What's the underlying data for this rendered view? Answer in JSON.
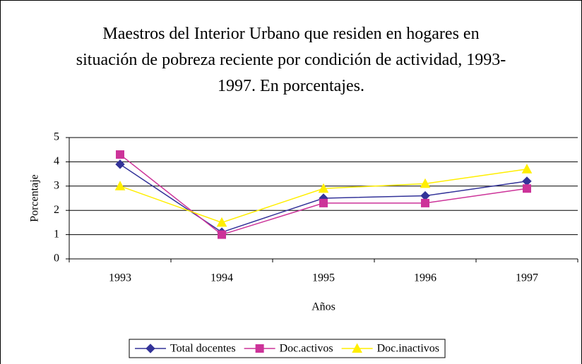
{
  "chart_data": {
    "type": "line",
    "title": "Maestros del Interior Urbano que residen en hogares en situación de pobreza reciente por condición de actividad, 1993-1997. En porcentajes.",
    "x_label": "Años",
    "y_label": "Porcentaje",
    "categories": [
      "1993",
      "1994",
      "1995",
      "1996",
      "1997"
    ],
    "series": [
      {
        "name": "Total docentes",
        "color": "#333399",
        "marker": "diamond",
        "values": [
          3.9,
          1.1,
          2.5,
          2.6,
          3.2
        ]
      },
      {
        "name": "Doc.activos",
        "color": "#cc3399",
        "marker": "square",
        "values": [
          4.3,
          1.0,
          2.3,
          2.3,
          2.9
        ]
      },
      {
        "name": "Doc.inactivos",
        "color": "#ffee00",
        "marker": "triangle",
        "values": [
          3.0,
          1.5,
          2.9,
          3.1,
          3.7
        ]
      }
    ],
    "ylim": [
      0,
      5
    ],
    "yticks": [
      0,
      1,
      2,
      3,
      4,
      5
    ],
    "grid": true,
    "legend": "bottom"
  }
}
